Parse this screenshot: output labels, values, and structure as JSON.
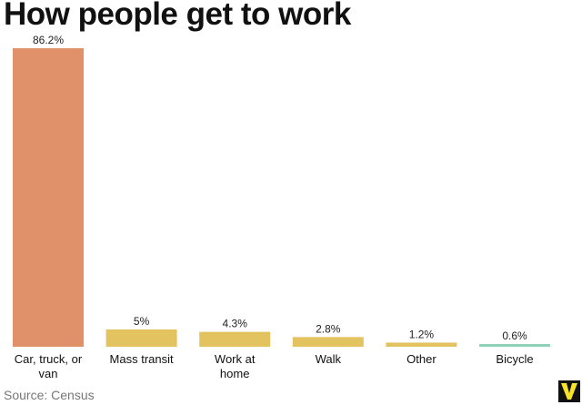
{
  "chart_data": {
    "type": "bar",
    "title": "How people get to work",
    "categories": [
      [
        "Car, truck, or",
        "van"
      ],
      [
        "Mass transit"
      ],
      [
        "Work at",
        "home"
      ],
      [
        "Walk"
      ],
      [
        "Other"
      ],
      [
        "Bicycle"
      ]
    ],
    "values": [
      86.2,
      5,
      4.3,
      2.8,
      1.2,
      0.6
    ],
    "value_labels": [
      "86.2%",
      "5%",
      "4.3%",
      "2.8%",
      "1.2%",
      "0.6%"
    ],
    "ylim": [
      0,
      86.2
    ],
    "grid": false,
    "legend": "none",
    "colors": [
      "#E0916A",
      "#E3C35F",
      "#E3C35F",
      "#E3C35F",
      "#E3C35F",
      "#8ED3B8"
    ]
  },
  "source": "Source: Census",
  "logo_icon": "vox-v-logo"
}
